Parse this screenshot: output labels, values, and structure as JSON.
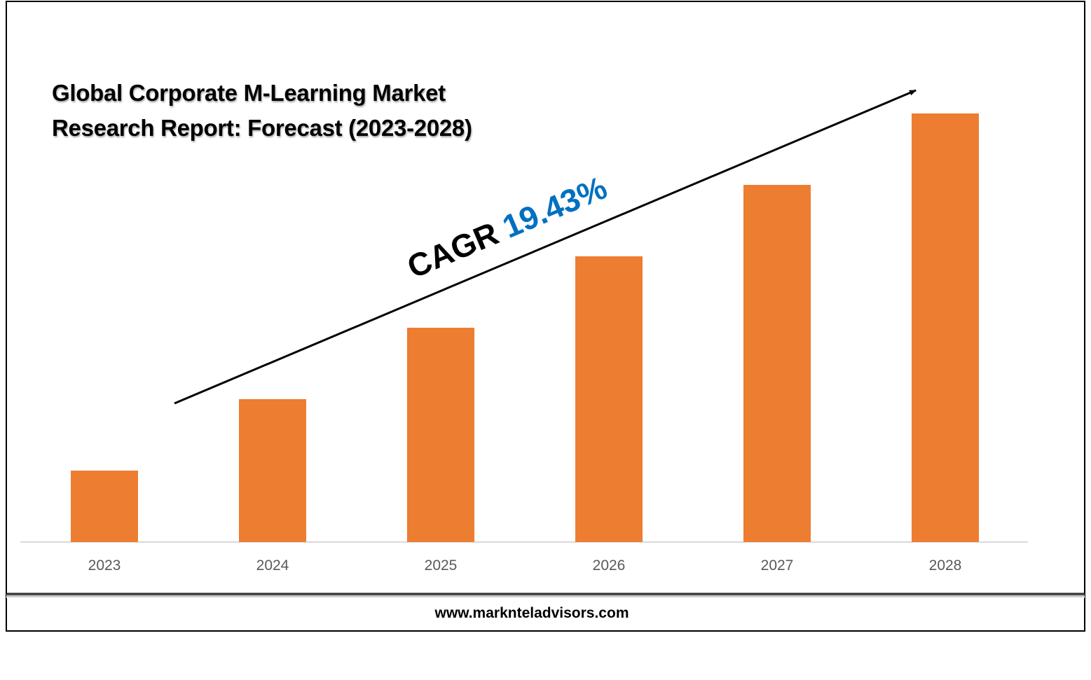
{
  "chart_data": {
    "type": "bar",
    "title": "Global Corporate M-Learning Market Research Report: Forecast (2023-2028)",
    "annotation": "CAGR",
    "annotation_value": "19.43%",
    "categories": [
      "2023",
      "2024",
      "2025",
      "2026",
      "2027",
      "2028"
    ],
    "values": [
      1,
      2,
      3,
      4,
      5,
      6
    ],
    "color": "#ed7d31",
    "footer": "www.marknteladvisors.com"
  }
}
